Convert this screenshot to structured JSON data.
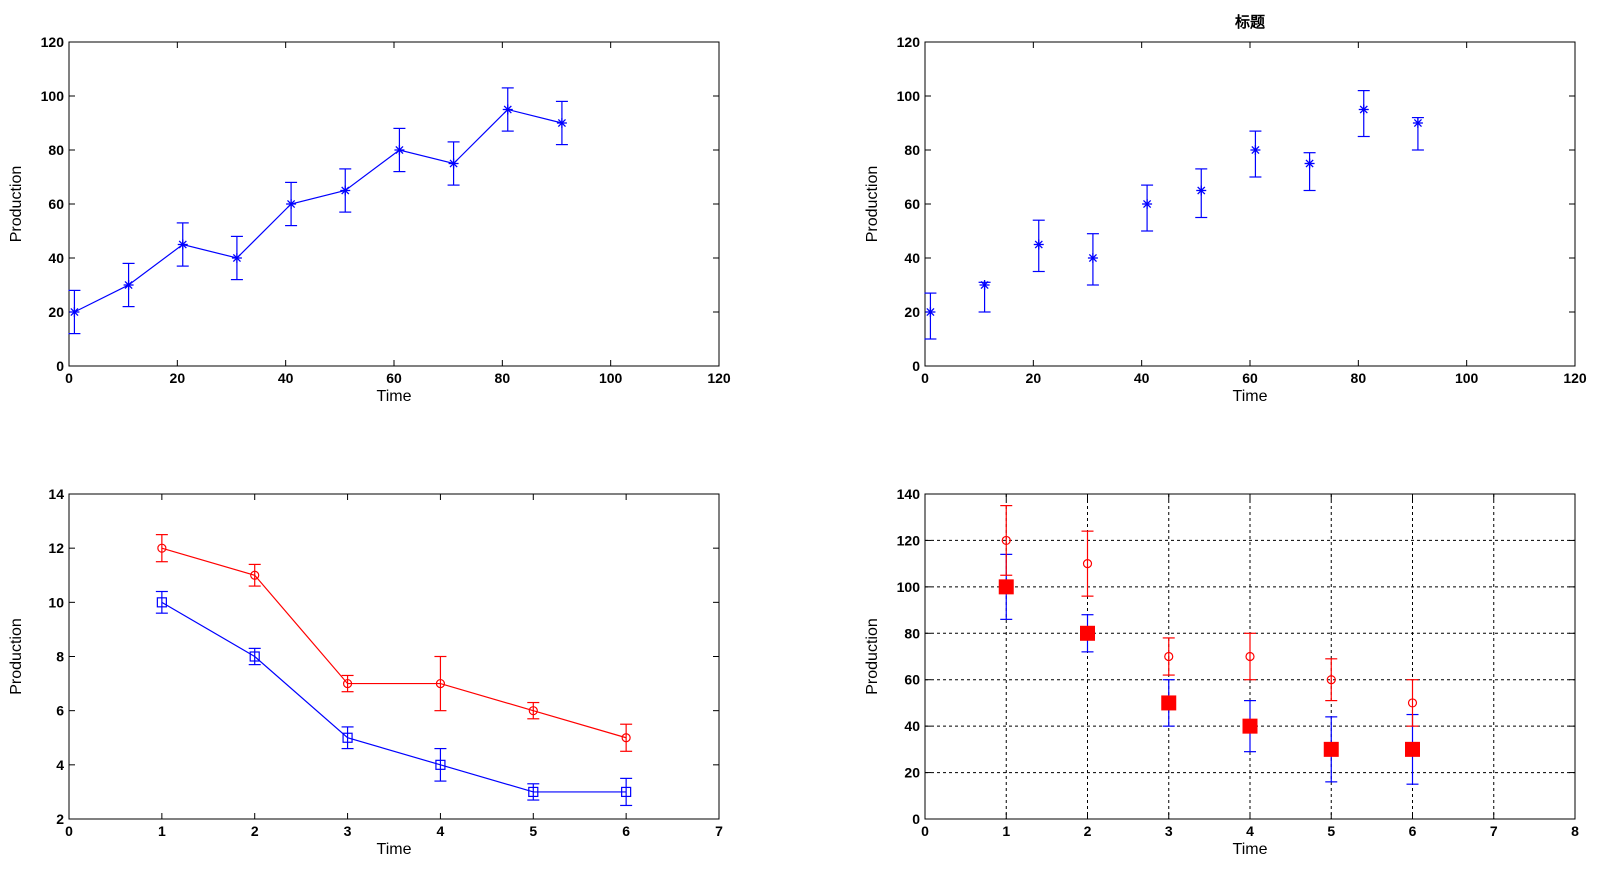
{
  "chart_data": [
    {
      "type": "line",
      "title": "",
      "xlabel": "Time",
      "ylabel": "Production",
      "xlim": [
        0,
        120
      ],
      "ylim": [
        0,
        120
      ],
      "xticks": [
        0,
        20,
        40,
        60,
        80,
        100,
        120
      ],
      "yticks": [
        0,
        20,
        40,
        60,
        80,
        100,
        120
      ],
      "grid": false,
      "series": [
        {
          "color": "#0000ff",
          "marker": "asterisk",
          "line": true,
          "x": [
            1,
            11,
            21,
            31,
            41,
            51,
            61,
            71,
            81,
            91
          ],
          "y": [
            20,
            30,
            45,
            40,
            60,
            65,
            80,
            75,
            95,
            90
          ],
          "err_low": [
            8,
            8,
            8,
            8,
            8,
            8,
            8,
            8,
            8,
            8
          ],
          "err_high": [
            8,
            8,
            8,
            8,
            8,
            8,
            8,
            8,
            8,
            8
          ]
        }
      ]
    },
    {
      "type": "scatter",
      "title": "标题",
      "xlabel": "Time",
      "ylabel": "Production",
      "xlim": [
        0,
        120
      ],
      "ylim": [
        0,
        120
      ],
      "xticks": [
        0,
        20,
        40,
        60,
        80,
        100,
        120
      ],
      "yticks": [
        0,
        20,
        40,
        60,
        80,
        100,
        120
      ],
      "grid": false,
      "series": [
        {
          "color": "#0000ff",
          "marker": "asterisk",
          "line": false,
          "x": [
            1,
            11,
            21,
            31,
            41,
            51,
            61,
            71,
            81,
            91
          ],
          "y": [
            20,
            30,
            45,
            40,
            60,
            65,
            80,
            75,
            95,
            90
          ],
          "err_low": [
            10,
            10,
            10,
            10,
            10,
            10,
            10,
            10,
            10,
            10
          ],
          "err_high": [
            7,
            1,
            9,
            9,
            7,
            8,
            7,
            4,
            7,
            2
          ]
        }
      ]
    },
    {
      "type": "line",
      "title": "",
      "xlabel": "Time",
      "ylabel": "Production",
      "xlim": [
        0,
        7
      ],
      "ylim": [
        2,
        14
      ],
      "xticks": [
        0,
        1,
        2,
        3,
        4,
        5,
        6,
        7
      ],
      "yticks": [
        2,
        4,
        6,
        8,
        10,
        12,
        14
      ],
      "grid": false,
      "series": [
        {
          "color": "#ff0000",
          "marker": "circle",
          "line": true,
          "x": [
            1,
            2,
            3,
            4,
            5,
            6
          ],
          "y": [
            12,
            11,
            7,
            7,
            6,
            5
          ],
          "err_low": [
            0.5,
            0.4,
            0.3,
            1,
            0.3,
            0.5
          ],
          "err_high": [
            0.5,
            0.4,
            0.3,
            1,
            0.3,
            0.5
          ]
        },
        {
          "color": "#0000ff",
          "marker": "square",
          "line": true,
          "x": [
            1,
            2,
            3,
            4,
            5,
            6
          ],
          "y": [
            10,
            8,
            5,
            4,
            3,
            3
          ],
          "err_low": [
            0.4,
            0.3,
            0.4,
            0.6,
            0.3,
            0.5
          ],
          "err_high": [
            0.4,
            0.3,
            0.4,
            0.6,
            0.3,
            0.5
          ]
        }
      ]
    },
    {
      "type": "scatter",
      "title": "",
      "xlabel": "Time",
      "ylabel": "Production",
      "xlim": [
        0,
        8
      ],
      "ylim": [
        0,
        140
      ],
      "xticks": [
        0,
        1,
        2,
        3,
        4,
        5,
        6,
        7,
        8
      ],
      "yticks": [
        0,
        20,
        40,
        60,
        80,
        100,
        120,
        140
      ],
      "grid": true,
      "series": [
        {
          "color": "#0000ff",
          "marker": "filled-square",
          "marker_color": "#ff0000",
          "line": false,
          "x": [
            1,
            2,
            3,
            4,
            5,
            6
          ],
          "y": [
            100,
            80,
            50,
            40,
            30,
            30
          ],
          "err_low": [
            14,
            8,
            10,
            11,
            14,
            15
          ],
          "err_high": [
            14,
            8,
            10,
            11,
            14,
            15
          ]
        },
        {
          "color": "#ff0000",
          "marker": "circle",
          "line": false,
          "x": [
            1,
            2,
            3,
            4,
            5,
            6
          ],
          "y": [
            120,
            110,
            70,
            70,
            60,
            50
          ],
          "err_low": [
            15,
            14,
            8,
            10,
            9,
            10
          ],
          "err_high": [
            15,
            14,
            8,
            10,
            9,
            10
          ]
        }
      ]
    }
  ]
}
